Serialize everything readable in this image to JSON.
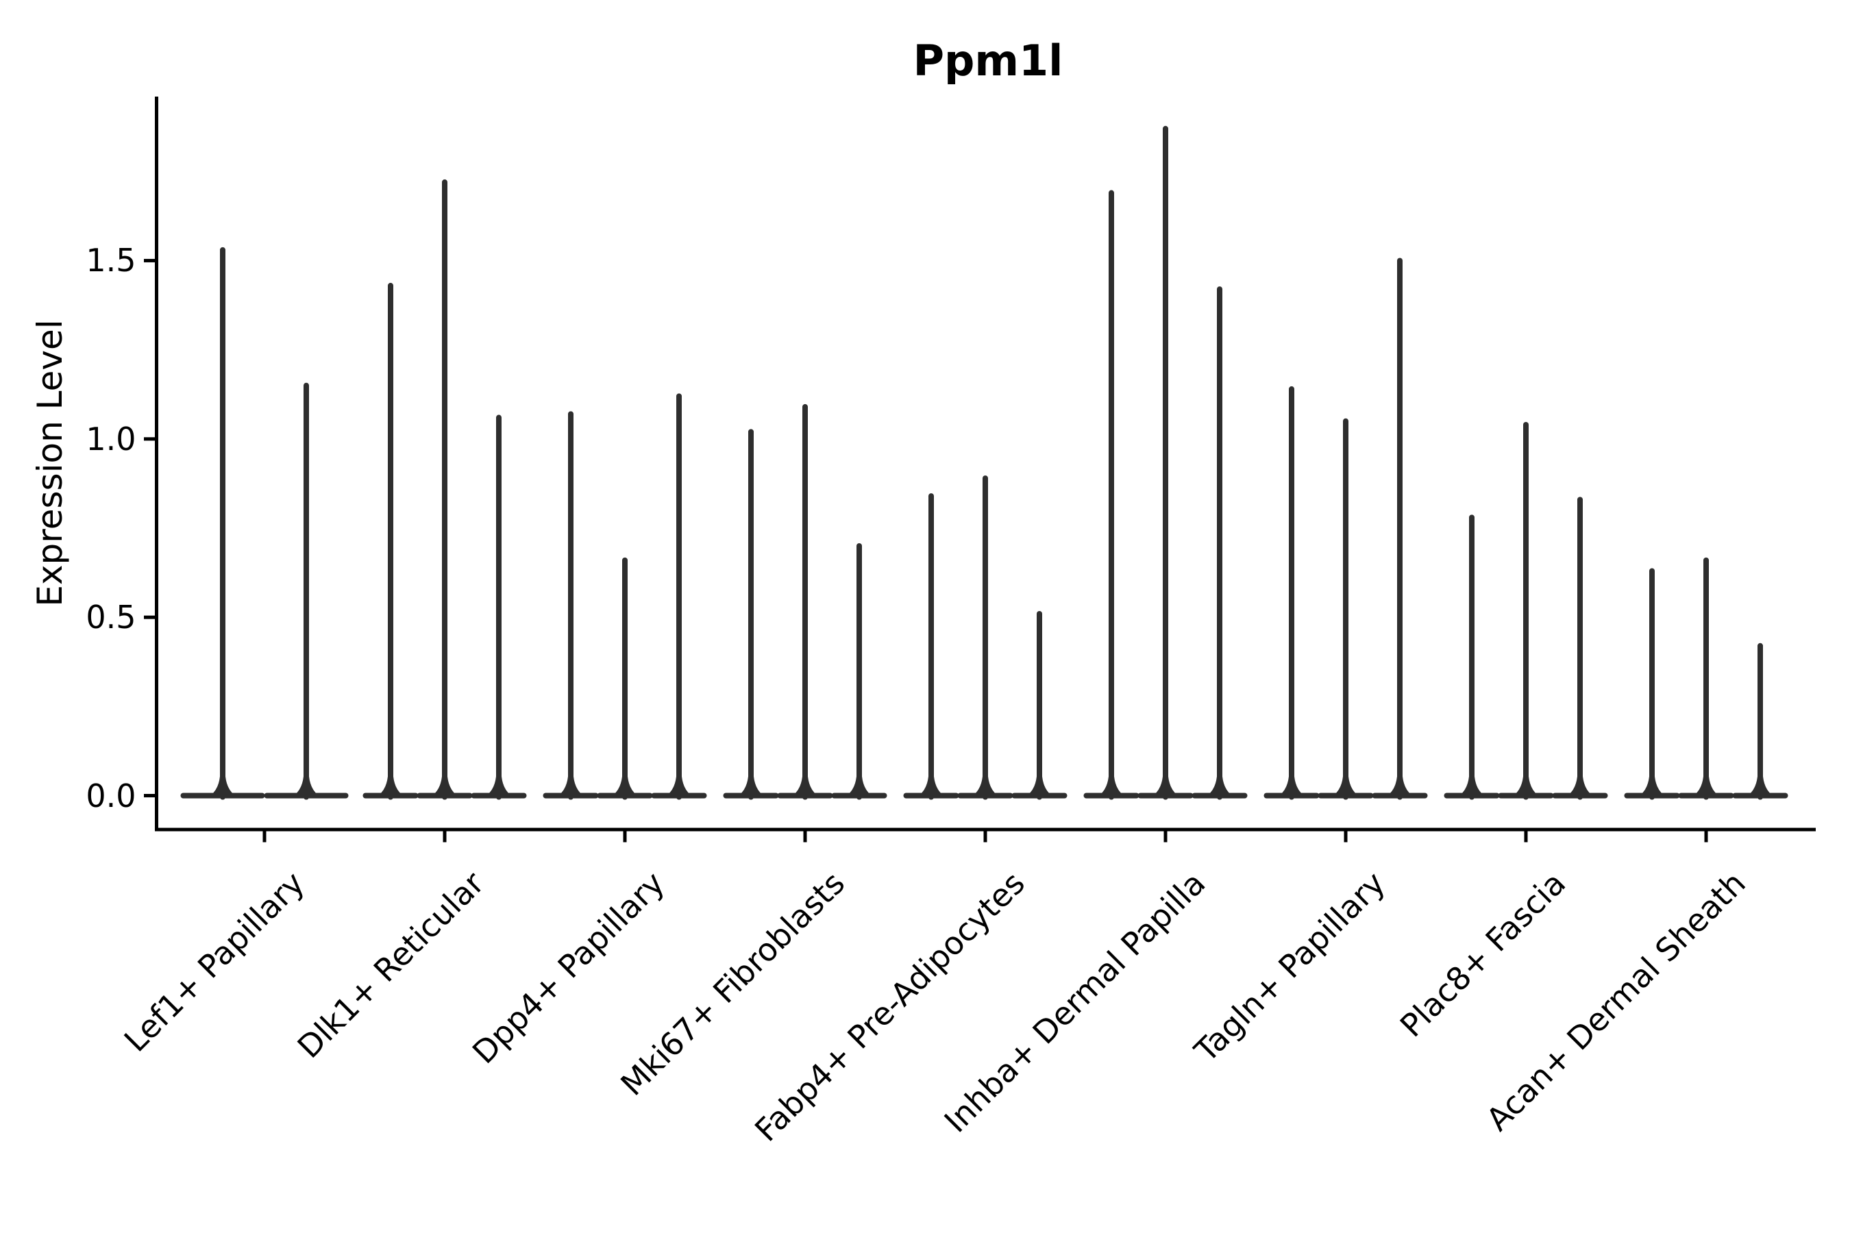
{
  "chart_data": {
    "type": "violin",
    "title": "Ppm1l",
    "xlabel": "",
    "ylabel": "Expression Level",
    "ytick_labels": [
      "0.0",
      "0.5",
      "1.0",
      "1.5"
    ],
    "ytick_values": [
      0.0,
      0.5,
      1.0,
      1.5
    ],
    "ylim": [
      -0.1,
      1.96
    ],
    "grid": false,
    "legend": "none",
    "violin_style": "wide flat base at 0 with thin vertical spike up to max expression",
    "categories": [
      "Lef1+ Papillary",
      "Dlk1+ Reticular",
      "Dpp4+ Papillary",
      "Mki67+ Fibroblasts",
      "Fabp4+ Pre-Adipocytes",
      "Inhba+ Dermal Papilla",
      "Tagln+ Papillary",
      "Plac8+ Fascia",
      "Acan+ Dermal Sheath"
    ],
    "groups": [
      {
        "label": "Lef1+ Papillary",
        "violin_maxima": [
          1.53,
          1.15
        ]
      },
      {
        "label": "Dlk1+ Reticular",
        "violin_maxima": [
          1.43,
          1.72,
          1.06
        ]
      },
      {
        "label": "Dpp4+ Papillary",
        "violin_maxima": [
          1.07,
          0.66,
          1.12
        ]
      },
      {
        "label": "Mki67+ Fibroblasts",
        "violin_maxima": [
          1.02,
          1.09,
          0.7
        ]
      },
      {
        "label": "Fabp4+ Pre-Adipocytes",
        "violin_maxima": [
          0.84,
          0.89,
          0.51
        ]
      },
      {
        "label": "Inhba+ Dermal Papilla",
        "violin_maxima": [
          1.69,
          1.87,
          1.42
        ]
      },
      {
        "label": "Tagln+ Papillary",
        "violin_maxima": [
          1.14,
          1.05,
          1.5
        ]
      },
      {
        "label": "Plac8+ Fascia",
        "violin_maxima": [
          0.78,
          1.04,
          0.83
        ]
      },
      {
        "label": "Acan+ Dermal Sheath",
        "violin_maxima": [
          0.63,
          0.66,
          0.42
        ]
      }
    ],
    "colors": {
      "violin": "#2e2e2e",
      "axis": "#000000",
      "text": "#000000",
      "background": "#ffffff"
    }
  }
}
